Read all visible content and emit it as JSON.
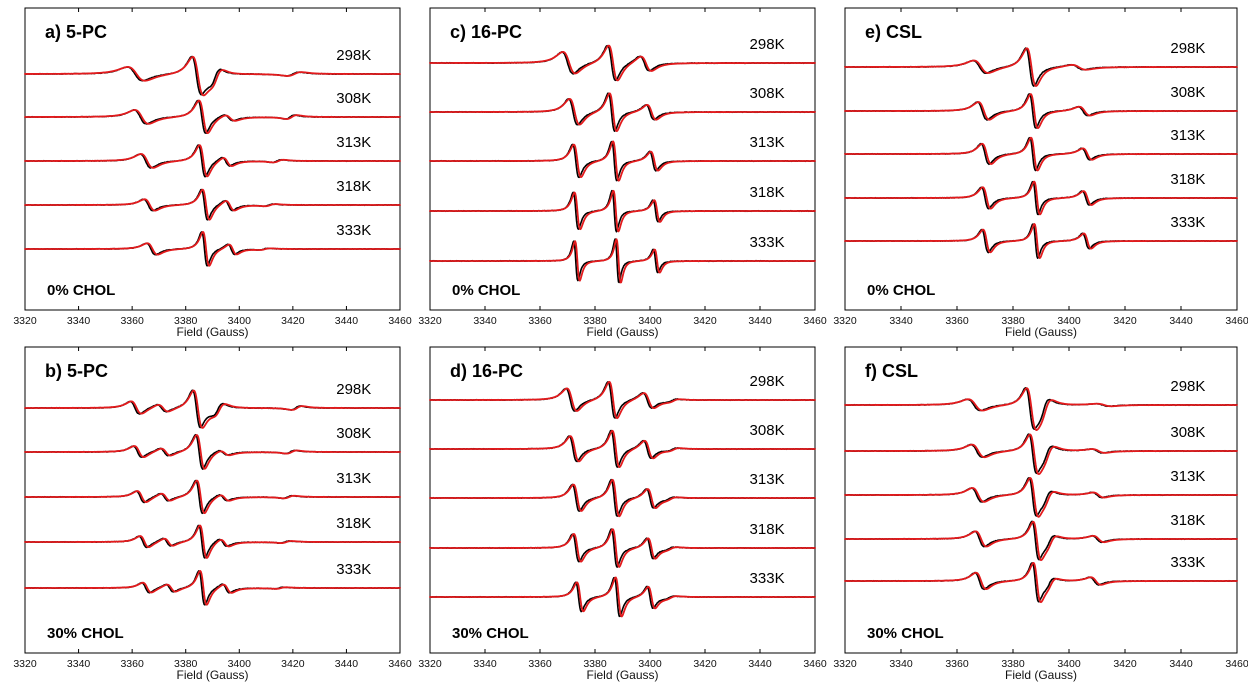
{
  "chart_data": [
    {
      "type": "line",
      "title": "a) 5-PC",
      "annotation": "0% CHOL",
      "xlabel": "Field (Gauss)",
      "xlim": [
        3320,
        3460
      ],
      "xticks": [
        3320,
        3340,
        3360,
        3380,
        3400,
        3420,
        3440,
        3460
      ],
      "grid": false,
      "series_colors": {
        "experiment": "#000000",
        "simulation": "#e31a1c"
      },
      "spectra": [
        {
          "label": "298K",
          "lines": [
            [
              3361,
              0.55,
              5
            ],
            [
              3384,
              1.45,
              3
            ],
            [
              3391,
              -0.5,
              3
            ],
            [
              3420,
              -0.15,
              4
            ]
          ]
        },
        {
          "label": "308K",
          "lines": [
            [
              3363,
              0.55,
              4
            ],
            [
              3386,
              1.3,
              2.5
            ],
            [
              3396,
              0.25,
              3
            ],
            [
              3419,
              -0.15,
              3
            ]
          ]
        },
        {
          "label": "313K",
          "lines": [
            [
              3365,
              0.55,
              3.5
            ],
            [
              3386,
              1.25,
              2.2
            ],
            [
              3395,
              0.35,
              2.5
            ],
            [
              3414,
              -0.1,
              3
            ]
          ]
        },
        {
          "label": "318K",
          "lines": [
            [
              3366,
              0.45,
              3
            ],
            [
              3387,
              1.2,
              2
            ],
            [
              3396,
              0.4,
              2.5
            ],
            [
              3411,
              -0.08,
              3
            ]
          ]
        },
        {
          "label": "333K",
          "lines": [
            [
              3367,
              0.45,
              3
            ],
            [
              3387,
              1.35,
              1.8
            ],
            [
              3397,
              0.4,
              2.2
            ],
            [
              3409,
              -0.06,
              3
            ]
          ]
        }
      ]
    },
    {
      "type": "line",
      "title": "c) 16-PC",
      "annotation": "0% CHOL",
      "xlabel": "Field (Gauss)",
      "xlim": [
        3320,
        3460
      ],
      "xticks": [
        3320,
        3340,
        3360,
        3380,
        3400,
        3420,
        3440,
        3460
      ],
      "grid": false,
      "series_colors": {
        "experiment": "#000000",
        "simulation": "#e31a1c"
      },
      "spectra": [
        {
          "label": "298K",
          "lines": [
            [
              3370,
              0.8,
              3.5
            ],
            [
              3386,
              1.3,
              2.5
            ],
            [
              3398,
              0.55,
              3
            ]
          ]
        },
        {
          "label": "308K",
          "lines": [
            [
              3372,
              0.95,
              2.8
            ],
            [
              3386,
              1.4,
              2
            ],
            [
              3400,
              0.55,
              2.5
            ]
          ]
        },
        {
          "label": "313K",
          "lines": [
            [
              3373,
              1.2,
              2
            ],
            [
              3387,
              1.45,
              1.6
            ],
            [
              3401,
              0.7,
              2
            ]
          ]
        },
        {
          "label": "318K",
          "lines": [
            [
              3373,
              1.35,
              1.6
            ],
            [
              3387,
              1.5,
              1.4
            ],
            [
              3402,
              0.8,
              1.6
            ]
          ]
        },
        {
          "label": "333K",
          "lines": [
            [
              3373,
              1.45,
              1.3
            ],
            [
              3388,
              1.6,
              1.2
            ],
            [
              3402,
              0.85,
              1.4
            ]
          ]
        }
      ]
    },
    {
      "type": "line",
      "title": "e) CSL",
      "annotation": "0% CHOL",
      "xlabel": "Field (Gauss)",
      "xlim": [
        3320,
        3460
      ],
      "xticks": [
        3320,
        3340,
        3360,
        3380,
        3400,
        3420,
        3440,
        3460
      ],
      "grid": false,
      "series_colors": {
        "experiment": "#000000",
        "simulation": "#e31a1c"
      },
      "spectra": [
        {
          "label": "298K",
          "lines": [
            [
              3368,
              0.5,
              4
            ],
            [
              3386,
              1.5,
              2.5
            ],
            [
              3403,
              0.2,
              4
            ]
          ]
        },
        {
          "label": "308K",
          "lines": [
            [
              3369,
              0.7,
              3
            ],
            [
              3387,
              1.35,
              2
            ],
            [
              3405,
              0.35,
              3
            ]
          ]
        },
        {
          "label": "313K",
          "lines": [
            [
              3370,
              0.8,
              2.5
            ],
            [
              3387,
              1.3,
              1.8
            ],
            [
              3406,
              0.45,
              2.5
            ]
          ]
        },
        {
          "label": "318K",
          "lines": [
            [
              3370,
              0.85,
              2.2
            ],
            [
              3388,
              1.3,
              1.6
            ],
            [
              3406,
              0.55,
              2.2
            ]
          ]
        },
        {
          "label": "333K",
          "lines": [
            [
              3370,
              0.9,
              2
            ],
            [
              3388,
              1.35,
              1.5
            ],
            [
              3406,
              0.6,
              2
            ]
          ]
        }
      ]
    },
    {
      "type": "line",
      "title": "b) 5-PC",
      "annotation": "30% CHOL",
      "xlabel": "Field (Gauss)",
      "xlim": [
        3320,
        3460
      ],
      "xticks": [
        3320,
        3340,
        3360,
        3380,
        3400,
        3420,
        3440,
        3460
      ],
      "grid": false,
      "series_colors": {
        "experiment": "#000000",
        "simulation": "#e31a1c"
      },
      "spectra": [
        {
          "label": "298K",
          "lines": [
            [
              3361,
              0.5,
              3
            ],
            [
              3371,
              0.3,
              3
            ],
            [
              3384,
              1.45,
              2.5
            ],
            [
              3392,
              -0.4,
              3
            ],
            [
              3421,
              -0.15,
              3
            ]
          ]
        },
        {
          "label": "308K",
          "lines": [
            [
              3362,
              0.45,
              2.8
            ],
            [
              3372,
              0.3,
              2.8
            ],
            [
              3385,
              1.35,
              2.3
            ],
            [
              3394,
              0.2,
              2.8
            ],
            [
              3419,
              -0.12,
              3
            ]
          ]
        },
        {
          "label": "313K",
          "lines": [
            [
              3363,
              0.45,
              2.6
            ],
            [
              3372,
              0.3,
              2.6
            ],
            [
              3385,
              1.3,
              2.2
            ],
            [
              3394,
              0.25,
              2.6
            ],
            [
              3418,
              -0.1,
              3
            ]
          ]
        },
        {
          "label": "318K",
          "lines": [
            [
              3364,
              0.45,
              2.5
            ],
            [
              3373,
              0.3,
              2.5
            ],
            [
              3386,
              1.3,
              2
            ],
            [
              3394,
              0.3,
              2.5
            ],
            [
              3417,
              -0.08,
              3
            ]
          ]
        },
        {
          "label": "333K",
          "lines": [
            [
              3365,
              0.4,
              2.5
            ],
            [
              3374,
              0.3,
              2.5
            ],
            [
              3386,
              1.35,
              1.9
            ],
            [
              3395,
              0.35,
              2.4
            ],
            [
              3415,
              -0.06,
              3
            ]
          ]
        }
      ]
    },
    {
      "type": "line",
      "title": "d) 16-PC",
      "annotation": "30% CHOL",
      "xlabel": "Field (Gauss)",
      "xlim": [
        3320,
        3460
      ],
      "xticks": [
        3320,
        3340,
        3360,
        3380,
        3400,
        3420,
        3440,
        3460
      ],
      "grid": false,
      "series_colors": {
        "experiment": "#000000",
        "simulation": "#e31a1c"
      },
      "spectra": [
        {
          "label": "298K",
          "lines": [
            [
              3371,
              0.9,
              2.8
            ],
            [
              3386,
              1.45,
              2.2
            ],
            [
              3399,
              0.6,
              2.8
            ],
            [
              3408,
              -0.1,
              3
            ]
          ]
        },
        {
          "label": "308K",
          "lines": [
            [
              3372,
              1.0,
              2.4
            ],
            [
              3387,
              1.45,
              2
            ],
            [
              3399,
              0.7,
              2.4
            ],
            [
              3408,
              -0.1,
              3
            ]
          ]
        },
        {
          "label": "313K",
          "lines": [
            [
              3373,
              1.05,
              2.2
            ],
            [
              3387,
              1.45,
              1.9
            ],
            [
              3400,
              0.75,
              2.2
            ],
            [
              3407,
              -0.1,
              3
            ]
          ]
        },
        {
          "label": "318K",
          "lines": [
            [
              3373,
              1.1,
              2
            ],
            [
              3387,
              1.5,
              1.8
            ],
            [
              3400,
              0.8,
              2
            ],
            [
              3407,
              -0.1,
              3
            ]
          ]
        },
        {
          "label": "333K",
          "lines": [
            [
              3374,
              1.15,
              1.8
            ],
            [
              3388,
              1.55,
              1.7
            ],
            [
              3400,
              0.85,
              1.9
            ],
            [
              3407,
              -0.1,
              3
            ]
          ]
        }
      ]
    },
    {
      "type": "line",
      "title": "f) CSL",
      "annotation": "30% CHOL",
      "xlabel": "Field (Gauss)",
      "xlim": [
        3320,
        3460
      ],
      "xticks": [
        3320,
        3340,
        3360,
        3380,
        3400,
        3420,
        3440,
        3460
      ],
      "grid": false,
      "series_colors": {
        "experiment": "#000000",
        "simulation": "#e31a1c"
      },
      "spectra": [
        {
          "label": "298K",
          "lines": [
            [
              3366,
              0.45,
              4
            ],
            [
              3386,
              1.5,
              2.5
            ],
            [
              3391,
              -0.6,
              3
            ],
            [
              3412,
              0.1,
              4
            ]
          ]
        },
        {
          "label": "308K",
          "lines": [
            [
              3367,
              0.5,
              3.5
            ],
            [
              3387,
              1.45,
              2.3
            ],
            [
              3392,
              -0.5,
              3
            ],
            [
              3410,
              0.15,
              3.5
            ]
          ]
        },
        {
          "label": "313K",
          "lines": [
            [
              3367,
              0.55,
              3.2
            ],
            [
              3387,
              1.45,
              2.2
            ],
            [
              3392,
              -0.4,
              2.8
            ],
            [
              3410,
              0.2,
              3
            ]
          ]
        },
        {
          "label": "318K",
          "lines": [
            [
              3368,
              0.6,
              3
            ],
            [
              3388,
              1.45,
              2.1
            ],
            [
              3393,
              -0.35,
              2.7
            ],
            [
              3410,
              0.25,
              3
            ]
          ]
        },
        {
          "label": "333K",
          "lines": [
            [
              3368,
              0.65,
              2.8
            ],
            [
              3388,
              1.5,
              2
            ],
            [
              3393,
              -0.3,
              2.6
            ],
            [
              3409,
              0.3,
              2.8
            ]
          ]
        }
      ]
    }
  ]
}
